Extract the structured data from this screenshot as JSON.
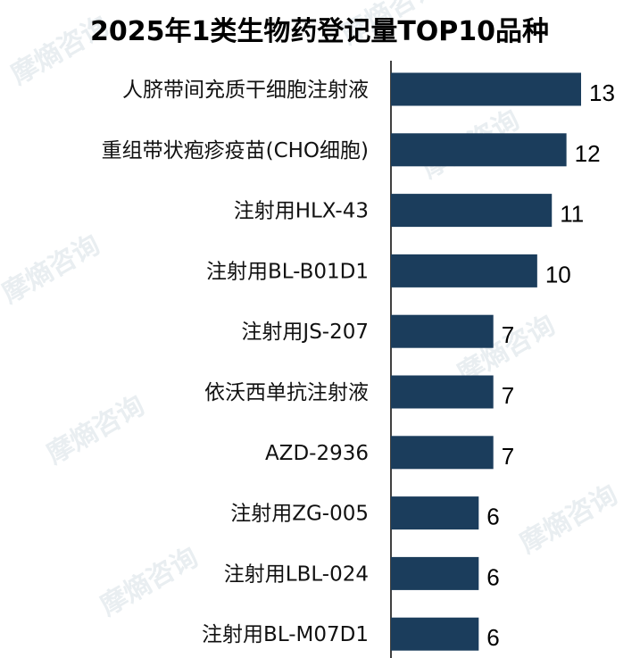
{
  "chart_data": {
    "type": "bar",
    "orientation": "horizontal",
    "title": "2025年1类生物药登记量TOP10品种",
    "categories": [
      "人脐带间充质干细胞注射液",
      "重组带状疱疹疫苗(CHO细胞)",
      "注射用HLX-43",
      "注射用BL-B01D1",
      "注射用JS-207",
      "依沃西单抗注射液",
      "AZD-2936",
      "注射用ZG-005",
      "注射用LBL-024",
      "注射用BL-M07D1"
    ],
    "values": [
      13,
      12,
      11,
      10,
      7,
      7,
      7,
      6,
      6,
      6
    ],
    "xlim": [
      0,
      13
    ],
    "bar_color": "#1b3d5c",
    "axis_color": "#000000",
    "grid": false,
    "legend": "none",
    "data_labels": true
  },
  "watermark": {
    "text": "摩熵咨询",
    "color": "#e9eef1"
  }
}
